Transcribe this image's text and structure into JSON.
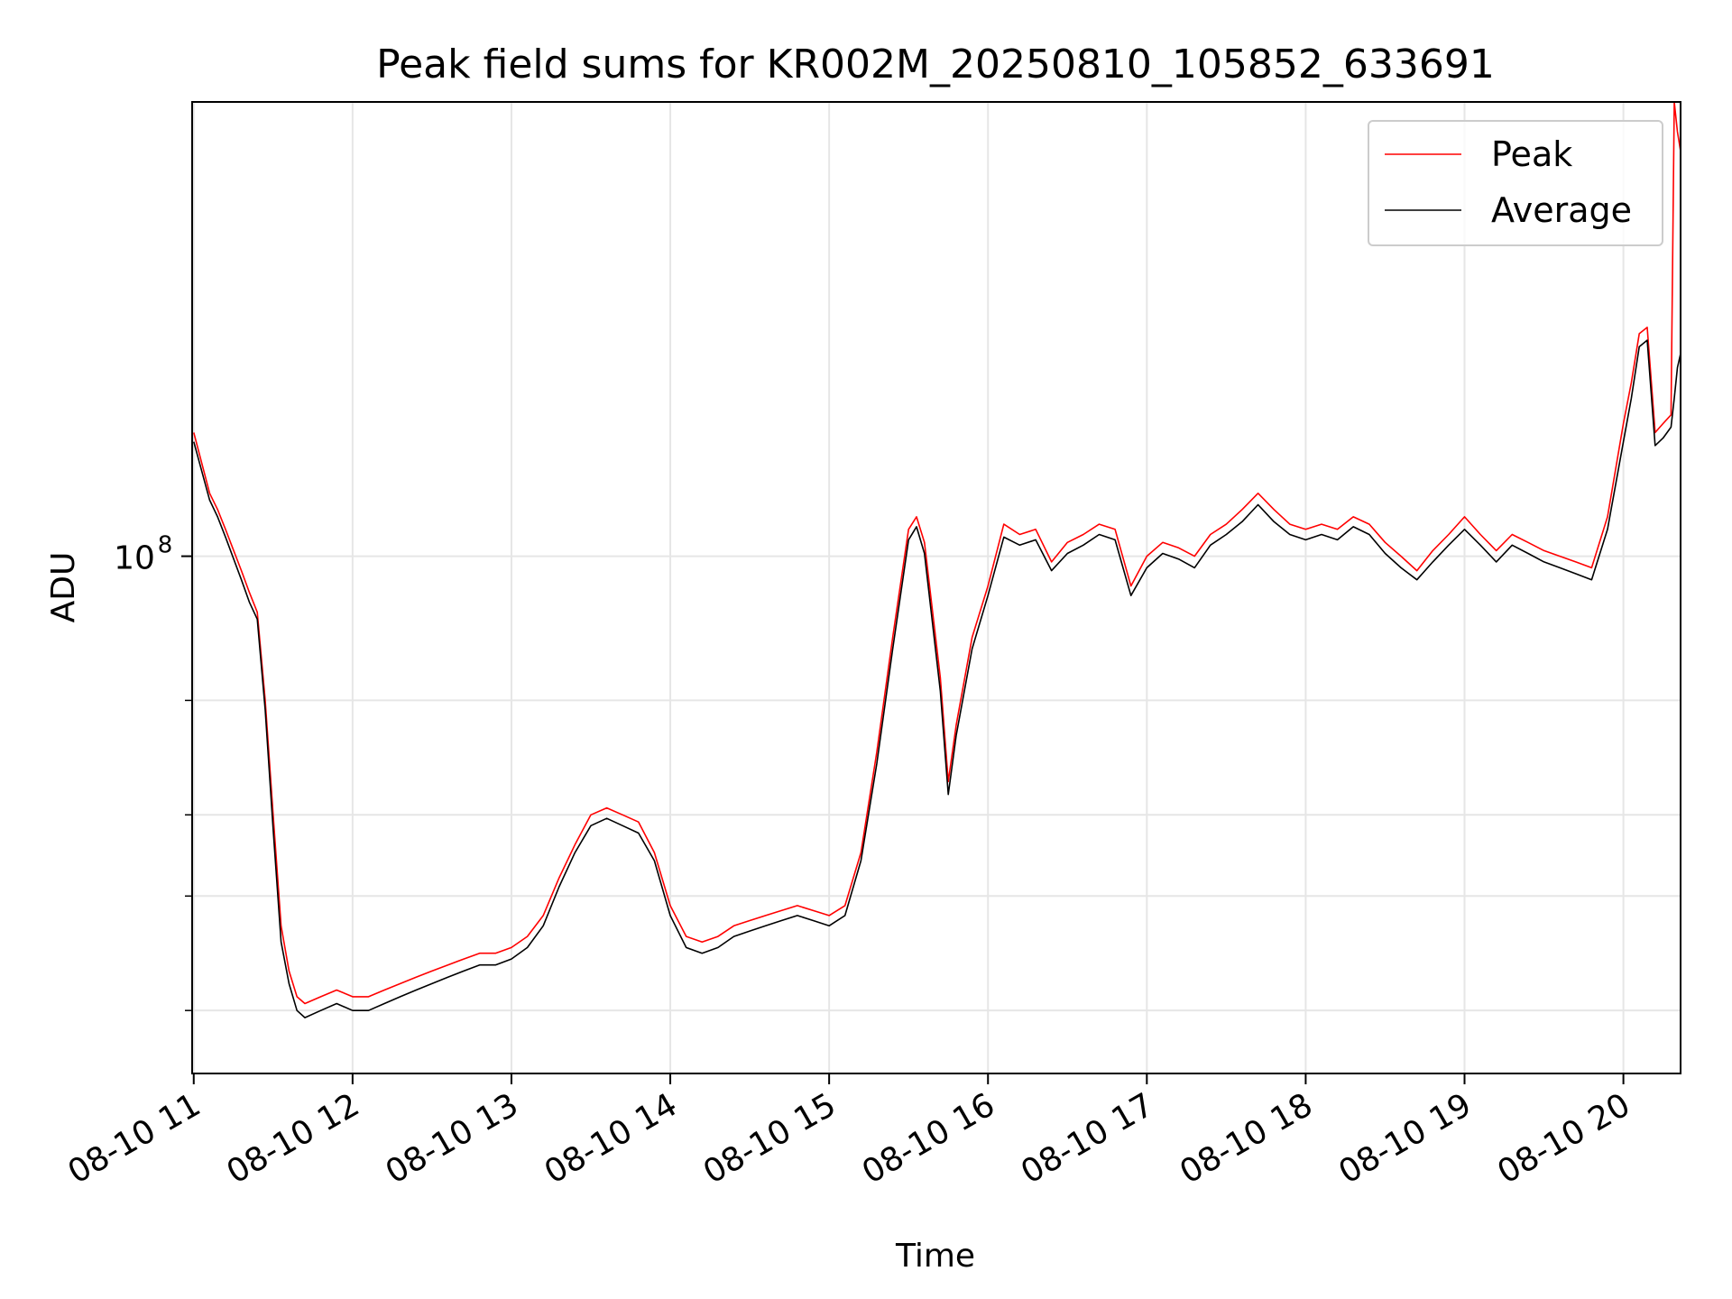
{
  "chart_data": {
    "type": "line",
    "title": "Peak field sums for KR002M_20250810_105852_633691",
    "xlabel": "Time",
    "ylabel": "ADU",
    "yscale": "log",
    "ylim": [
      16000000,
      500000000
    ],
    "y_major_tick_label": "10",
    "y_major_tick_exponent": "8",
    "y_major_tick_value": 100000000,
    "y_minor_ticks": [
      20000000,
      30000000,
      40000000,
      60000000
    ],
    "xlim_hours": [
      10.99,
      20.36
    ],
    "x_tick_labels": [
      "08-10 11",
      "08-10 12",
      "08-10 13",
      "08-10 14",
      "08-10 15",
      "08-10 16",
      "08-10 17",
      "08-10 18",
      "08-10 19",
      "08-10 20"
    ],
    "x_tick_hours": [
      11,
      12,
      13,
      14,
      15,
      16,
      17,
      18,
      19,
      20
    ],
    "grid": true,
    "legend_position": "upper right",
    "colors": {
      "peak": "#ff0000",
      "average": "#000000",
      "grid": "#e6e6e6"
    },
    "series": [
      {
        "name": "Peak",
        "color": "#ff0000",
        "x": [
          11.0,
          11.1,
          11.15,
          11.2,
          11.3,
          11.35,
          11.4,
          11.45,
          11.5,
          11.55,
          11.6,
          11.65,
          11.7,
          11.8,
          11.9,
          12.0,
          12.1,
          12.2,
          12.3,
          12.4,
          12.5,
          12.6,
          12.7,
          12.8,
          12.9,
          13.0,
          13.1,
          13.2,
          13.3,
          13.4,
          13.5,
          13.6,
          13.7,
          13.8,
          13.9,
          14.0,
          14.1,
          14.2,
          14.3,
          14.4,
          14.5,
          14.6,
          14.7,
          14.8,
          14.9,
          15.0,
          15.1,
          15.2,
          15.3,
          15.4,
          15.5,
          15.55,
          15.6,
          15.7,
          15.75,
          15.8,
          15.9,
          16.0,
          16.1,
          16.2,
          16.3,
          16.4,
          16.5,
          16.6,
          16.7,
          16.8,
          16.9,
          17.0,
          17.1,
          17.2,
          17.3,
          17.4,
          17.5,
          17.6,
          17.7,
          17.8,
          17.9,
          18.0,
          18.1,
          18.2,
          18.3,
          18.4,
          18.5,
          18.6,
          18.7,
          18.8,
          18.9,
          19.0,
          19.1,
          19.2,
          19.3,
          19.4,
          19.5,
          19.6,
          19.7,
          19.8,
          19.9,
          20.0,
          20.05,
          20.1,
          20.15,
          20.2,
          20.25,
          20.3,
          20.32,
          20.34,
          20.36
        ],
        "y": [
          155000000,
          125000000,
          118000000,
          110000000,
          95000000,
          88000000,
          82000000,
          60000000,
          40000000,
          27000000,
          23000000,
          21000000,
          20500000,
          21000000,
          21500000,
          21000000,
          21000000,
          21500000,
          22000000,
          22500000,
          23000000,
          23500000,
          24000000,
          24500000,
          24500000,
          25000000,
          26000000,
          28000000,
          32000000,
          36000000,
          40000000,
          41000000,
          40000000,
          39000000,
          35000000,
          29000000,
          26000000,
          25500000,
          26000000,
          27000000,
          27500000,
          28000000,
          28500000,
          29000000,
          28500000,
          28000000,
          29000000,
          35000000,
          50000000,
          75000000,
          110000000,
          115000000,
          105000000,
          65000000,
          45000000,
          55000000,
          75000000,
          90000000,
          112000000,
          108000000,
          110000000,
          98000000,
          105000000,
          108000000,
          112000000,
          110000000,
          90000000,
          100000000,
          105000000,
          103000000,
          100000000,
          108000000,
          112000000,
          118000000,
          125000000,
          118000000,
          112000000,
          110000000,
          112000000,
          110000000,
          115000000,
          112000000,
          105000000,
          100000000,
          95000000,
          102000000,
          108000000,
          115000000,
          108000000,
          102000000,
          108000000,
          105000000,
          102000000,
          100000000,
          98000000,
          96000000,
          115000000,
          160000000,
          185000000,
          220000000,
          225000000,
          155000000,
          160000000,
          165000000,
          500000000,
          450000000,
          420000000
        ]
      },
      {
        "name": "Average",
        "color": "#000000",
        "x": [
          11.0,
          11.1,
          11.15,
          11.2,
          11.3,
          11.35,
          11.4,
          11.45,
          11.5,
          11.55,
          11.6,
          11.65,
          11.7,
          11.8,
          11.9,
          12.0,
          12.1,
          12.2,
          12.3,
          12.4,
          12.5,
          12.6,
          12.7,
          12.8,
          12.9,
          13.0,
          13.1,
          13.2,
          13.3,
          13.4,
          13.5,
          13.6,
          13.7,
          13.8,
          13.9,
          14.0,
          14.1,
          14.2,
          14.3,
          14.4,
          14.5,
          14.6,
          14.7,
          14.8,
          14.9,
          15.0,
          15.1,
          15.2,
          15.3,
          15.4,
          15.5,
          15.55,
          15.6,
          15.7,
          15.75,
          15.8,
          15.9,
          16.0,
          16.1,
          16.2,
          16.3,
          16.4,
          16.5,
          16.6,
          16.7,
          16.8,
          16.9,
          17.0,
          17.1,
          17.2,
          17.3,
          17.4,
          17.5,
          17.6,
          17.7,
          17.8,
          17.9,
          18.0,
          18.1,
          18.2,
          18.3,
          18.4,
          18.5,
          18.6,
          18.7,
          18.8,
          18.9,
          19.0,
          19.1,
          19.2,
          19.3,
          19.4,
          19.5,
          19.6,
          19.7,
          19.8,
          19.9,
          20.0,
          20.05,
          20.1,
          20.15,
          20.2,
          20.25,
          20.3,
          20.32,
          20.34,
          20.36
        ],
        "y": [
          150000000,
          122000000,
          115000000,
          107000000,
          92000000,
          85000000,
          80000000,
          58000000,
          38000000,
          25500000,
          22000000,
          20000000,
          19500000,
          20000000,
          20500000,
          20000000,
          20000000,
          20500000,
          21000000,
          21500000,
          22000000,
          22500000,
          23000000,
          23500000,
          23500000,
          24000000,
          25000000,
          27000000,
          31000000,
          35000000,
          38500000,
          39500000,
          38500000,
          37500000,
          34000000,
          28000000,
          25000000,
          24500000,
          25000000,
          26000000,
          26500000,
          27000000,
          27500000,
          28000000,
          27500000,
          27000000,
          28000000,
          34000000,
          48000000,
          72000000,
          106000000,
          111000000,
          101000000,
          62000000,
          43000000,
          53000000,
          72000000,
          87000000,
          107000000,
          104000000,
          106000000,
          95000000,
          101000000,
          104000000,
          108000000,
          106000000,
          87000000,
          96000000,
          101000000,
          99000000,
          96000000,
          104000000,
          108000000,
          113000000,
          120000000,
          113000000,
          108000000,
          106000000,
          108000000,
          106000000,
          111000000,
          108000000,
          101000000,
          96000000,
          92000000,
          98000000,
          104000000,
          110000000,
          104000000,
          98000000,
          104000000,
          101000000,
          98000000,
          96000000,
          94000000,
          92000000,
          110000000,
          150000000,
          175000000,
          210000000,
          215000000,
          148000000,
          152000000,
          158000000,
          175000000,
          195000000,
          205000000
        ]
      }
    ]
  }
}
